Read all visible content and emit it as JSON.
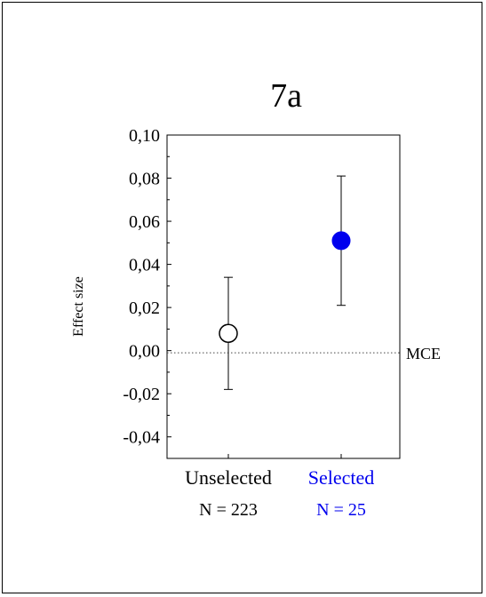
{
  "chart_data": {
    "type": "scatter",
    "title": "7a",
    "ylabel": "Effect size",
    "xlabel": "",
    "ylim": [
      -0.05,
      0.1
    ],
    "yticks": [
      "0,10",
      "0,08",
      "0,06",
      "0,04",
      "0,02",
      "0,00",
      "-0,02",
      "-0,04"
    ],
    "ytick_values": [
      0.1,
      0.08,
      0.06,
      0.04,
      0.02,
      0.0,
      -0.02,
      -0.04
    ],
    "grid": false,
    "reference_line": {
      "label": "MCE",
      "value": -0.001,
      "style": "dotted"
    },
    "categories": [
      {
        "label": "Unselected",
        "n_label": "N = 223",
        "value": 0.008,
        "ci_low": -0.018,
        "ci_high": 0.034,
        "marker": "open-circle",
        "color": "#000000"
      },
      {
        "label": "Selected",
        "n_label": "N = 25",
        "value": 0.051,
        "ci_low": 0.021,
        "ci_high": 0.081,
        "marker": "filled-circle",
        "color": "#0000ee"
      }
    ]
  }
}
